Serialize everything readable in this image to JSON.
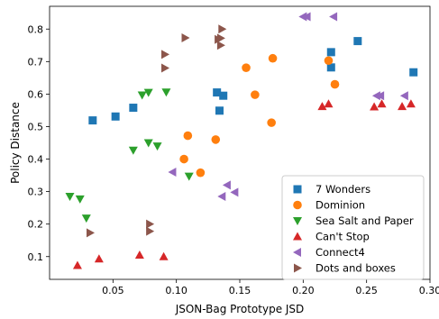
{
  "chart_data": {
    "type": "scatter",
    "xlabel": "JSON-Bag Prototype JSD",
    "ylabel": "Policy Distance",
    "xlim": [
      0.0,
      0.3
    ],
    "ylim": [
      0.03,
      0.87
    ],
    "xticks": [
      0.05,
      0.1,
      0.15,
      0.2,
      0.25,
      0.3
    ],
    "xtick_labels": [
      "0.05",
      "0.10",
      "0.15",
      "0.20",
      "0.25",
      "0.30"
    ],
    "yticks": [
      0.1,
      0.2,
      0.3,
      0.4,
      0.5,
      0.6,
      0.7,
      0.8
    ],
    "ytick_labels": [
      "0.1",
      "0.2",
      "0.3",
      "0.4",
      "0.5",
      "0.6",
      "0.7",
      "0.8"
    ],
    "grid": false,
    "legend_position": "lower-right",
    "series": [
      {
        "name": "7 Wonders",
        "marker": "square",
        "color": "#1f77b4",
        "points": [
          [
            0.034,
            0.519
          ],
          [
            0.052,
            0.531
          ],
          [
            0.066,
            0.558
          ],
          [
            0.132,
            0.605
          ],
          [
            0.137,
            0.595
          ],
          [
            0.134,
            0.549
          ],
          [
            0.222,
            0.729
          ],
          [
            0.222,
            0.682
          ],
          [
            0.243,
            0.763
          ],
          [
            0.287,
            0.667
          ]
        ]
      },
      {
        "name": "Dominion",
        "marker": "circle",
        "color": "#ff7f0e",
        "points": [
          [
            0.109,
            0.472
          ],
          [
            0.106,
            0.4
          ],
          [
            0.119,
            0.358
          ],
          [
            0.131,
            0.46
          ],
          [
            0.155,
            0.681
          ],
          [
            0.162,
            0.598
          ],
          [
            0.175,
            0.512
          ],
          [
            0.176,
            0.71
          ],
          [
            0.22,
            0.703
          ],
          [
            0.225,
            0.63
          ]
        ]
      },
      {
        "name": "Sea Salt and Paper",
        "marker": "triangle-down",
        "color": "#2ca02c",
        "points": [
          [
            0.016,
            0.285
          ],
          [
            0.024,
            0.277
          ],
          [
            0.029,
            0.218
          ],
          [
            0.066,
            0.427
          ],
          [
            0.073,
            0.597
          ],
          [
            0.078,
            0.605
          ],
          [
            0.078,
            0.45
          ],
          [
            0.085,
            0.44
          ],
          [
            0.092,
            0.606
          ],
          [
            0.11,
            0.347
          ]
        ]
      },
      {
        "name": "Can't Stop",
        "marker": "triangle-up",
        "color": "#d62728",
        "points": [
          [
            0.022,
            0.073
          ],
          [
            0.039,
            0.093
          ],
          [
            0.071,
            0.105
          ],
          [
            0.09,
            0.1
          ],
          [
            0.215,
            0.562
          ],
          [
            0.22,
            0.57
          ],
          [
            0.256,
            0.561
          ],
          [
            0.262,
            0.57
          ],
          [
            0.278,
            0.562
          ],
          [
            0.285,
            0.57
          ]
        ]
      },
      {
        "name": "Connect4",
        "marker": "triangle-left",
        "color": "#9467bd",
        "points": [
          [
            0.097,
            0.36
          ],
          [
            0.136,
            0.285
          ],
          [
            0.14,
            0.32
          ],
          [
            0.146,
            0.298
          ],
          [
            0.2,
            0.838
          ],
          [
            0.203,
            0.838
          ],
          [
            0.224,
            0.838
          ],
          [
            0.258,
            0.595
          ],
          [
            0.261,
            0.595
          ],
          [
            0.28,
            0.595
          ]
        ]
      },
      {
        "name": "Dots and boxes",
        "marker": "triangle-right",
        "color": "#8c564b",
        "points": [
          [
            0.032,
            0.173
          ],
          [
            0.079,
            0.2
          ],
          [
            0.079,
            0.178
          ],
          [
            0.091,
            0.722
          ],
          [
            0.091,
            0.68
          ],
          [
            0.107,
            0.773
          ],
          [
            0.133,
            0.768
          ],
          [
            0.135,
            0.772
          ],
          [
            0.135,
            0.75
          ],
          [
            0.136,
            0.8
          ]
        ]
      }
    ]
  }
}
